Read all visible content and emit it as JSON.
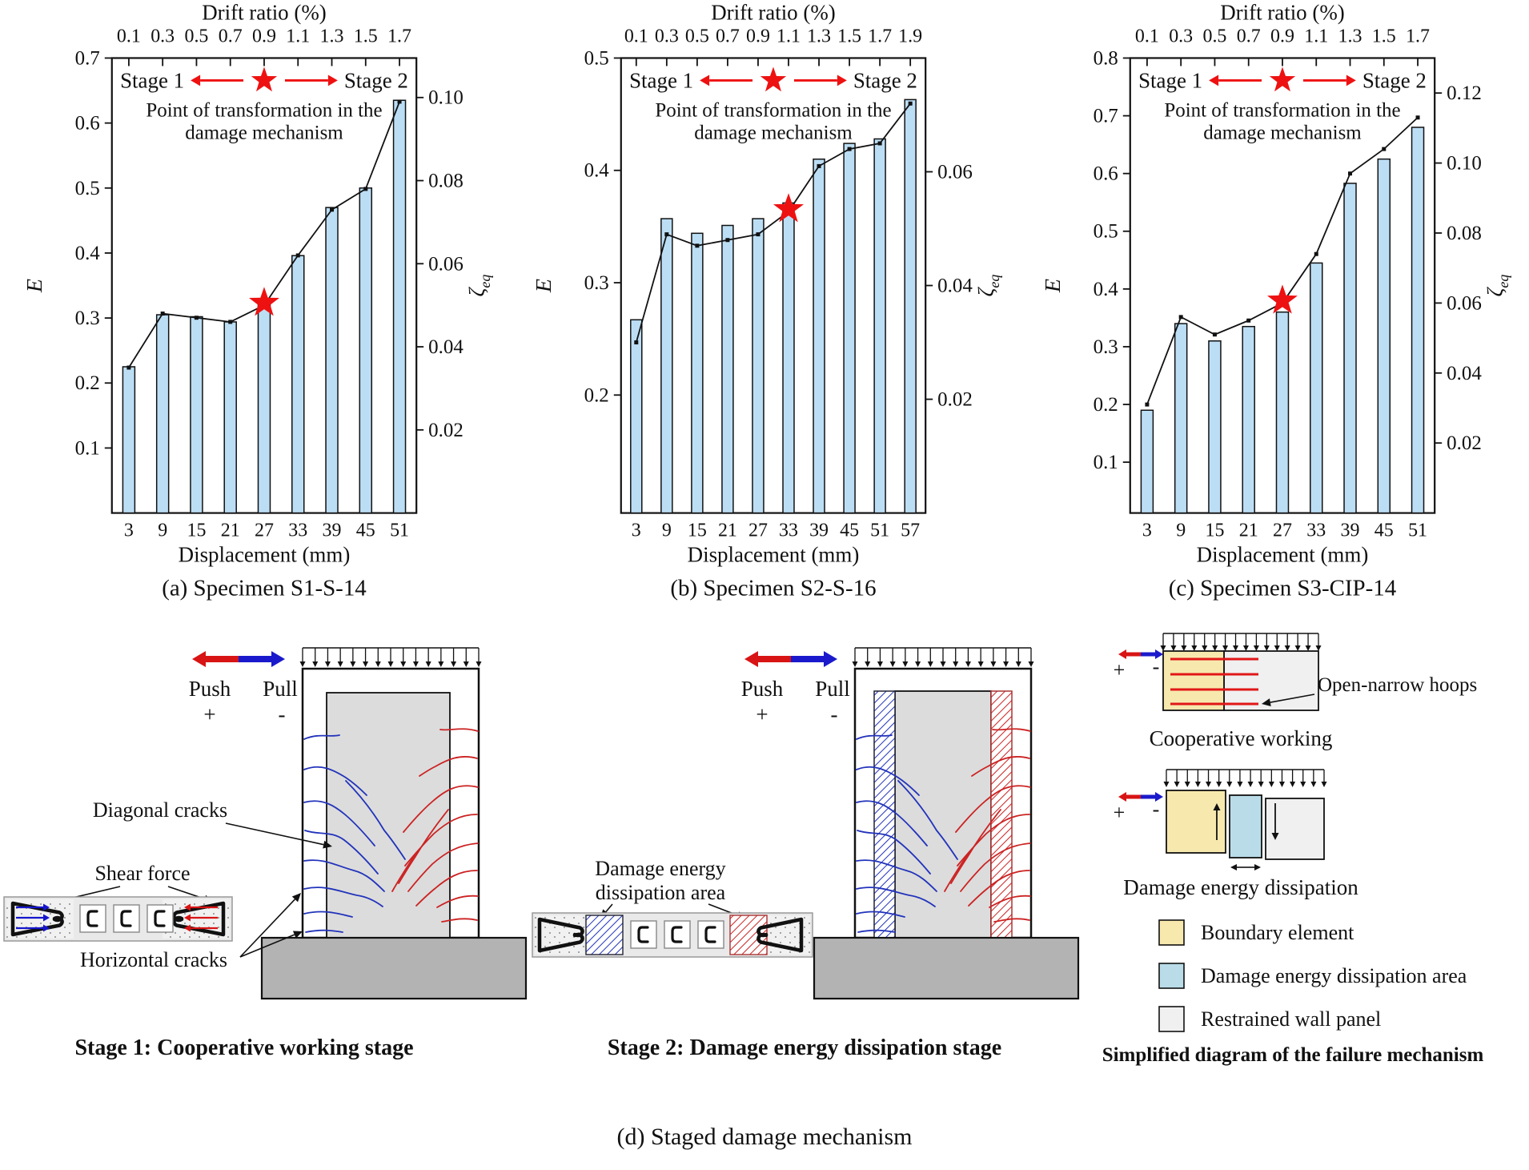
{
  "colors": {
    "bar_fill": "#bcdef5",
    "bar_stroke": "#111111",
    "line": "#111111",
    "star": "#ee1111",
    "push_red": "#d81414",
    "pull_blue": "#1a1acc",
    "crack_blue": "#2233bb",
    "crack_red": "#cc2222",
    "boundary_yellow": "#f7e9ae",
    "dissipation_blue": "#b9dce8",
    "restrained_gray": "#f0f0f0",
    "inner_panel_gray": "#dcdcdc",
    "foundation_gray": "#b3b3b3"
  },
  "chart_data": [
    {
      "id": "a",
      "type": "bar",
      "title_top": "Drift ratio (%)",
      "xlabel": "Displacement (mm)",
      "ylabel_left": "E",
      "ylabel_right": "ζ",
      "ylabel_right_sub": "eq",
      "categories": [
        3,
        9,
        15,
        21,
        27,
        33,
        39,
        45,
        51
      ],
      "drift_ticks": [
        "0.1",
        "0.3",
        "0.5",
        "0.7",
        "0.9",
        "1.1",
        "1.3",
        "1.5",
        "1.7"
      ],
      "series": [
        {
          "name": "E (bars, left axis)",
          "values": [
            0.225,
            0.305,
            0.302,
            0.294,
            0.322,
            0.396,
            0.47,
            0.5,
            0.635
          ]
        },
        {
          "name": "ζeq (line, right axis)",
          "values": [
            0.035,
            0.048,
            0.047,
            0.046,
            0.05,
            0.062,
            0.073,
            0.078,
            0.099
          ]
        }
      ],
      "left_axis": {
        "min": 0,
        "max": 0.7,
        "ticks": [
          0.1,
          0.2,
          0.3,
          0.4,
          0.5,
          0.6,
          0.7
        ]
      },
      "right_axis": {
        "min": 0,
        "max": 0.1095,
        "ticks": [
          0.02,
          0.04,
          0.06,
          0.08,
          0.1
        ],
        "labels": [
          "0.02",
          "0.04",
          "0.06",
          "0.08",
          "0.10"
        ]
      },
      "grid": false,
      "star_index": 4,
      "annotations": {
        "stage1": "Stage 1",
        "stage2": "Stage 2",
        "note1": "Point of transformation in the",
        "note2": "damage mechanism"
      },
      "caption": "(a) Specimen S1-S-14"
    },
    {
      "id": "b",
      "type": "bar",
      "title_top": "Drift ratio (%)",
      "xlabel": "Displacement (mm)",
      "ylabel_left": "E",
      "ylabel_right": "ζ",
      "ylabel_right_sub": "eq",
      "categories": [
        3,
        9,
        15,
        21,
        27,
        33,
        39,
        45,
        51,
        57
      ],
      "drift_ticks": [
        "0.1",
        "0.3",
        "0.5",
        "0.7",
        "0.9",
        "1.1",
        "1.3",
        "1.5",
        "1.7",
        "1.9"
      ],
      "series": [
        {
          "name": "E (bars, left axis)",
          "values": [
            0.267,
            0.357,
            0.344,
            0.351,
            0.357,
            0.371,
            0.41,
            0.424,
            0.428,
            0.463
          ]
        },
        {
          "name": "ζeq (line, right axis)",
          "values": [
            0.03,
            0.049,
            0.047,
            0.048,
            0.049,
            0.053,
            0.061,
            0.064,
            0.065,
            0.072
          ]
        }
      ],
      "left_axis": {
        "min": 0.095,
        "max": 0.5,
        "ticks": [
          0.2,
          0.3,
          0.4,
          0.5
        ]
      },
      "right_axis": {
        "min": 0,
        "max": 0.08,
        "ticks": [
          0.02,
          0.04,
          0.06
        ],
        "labels": [
          "0.02",
          "0.04",
          "0.06"
        ]
      },
      "grid": false,
      "star_index": 5,
      "annotations": {
        "stage1": "Stage 1",
        "stage2": "Stage 2",
        "note1": "Point of transformation in the",
        "note2": "damage mechanism"
      },
      "caption": "(b) Specimen S2-S-16"
    },
    {
      "id": "c",
      "type": "bar",
      "title_top": "Drift ratio (%)",
      "xlabel": "Displacement (mm)",
      "ylabel_left": "E",
      "ylabel_right": "ζ",
      "ylabel_right_sub": "eq",
      "categories": [
        3,
        9,
        15,
        21,
        27,
        33,
        39,
        45,
        51
      ],
      "drift_ticks": [
        "0.1",
        "0.3",
        "0.5",
        "0.7",
        "0.9",
        "1.1",
        "1.3",
        "1.5",
        "1.7"
      ],
      "series": [
        {
          "name": "E (bars, left axis)",
          "values": [
            0.19,
            0.34,
            0.31,
            0.335,
            0.36,
            0.445,
            0.583,
            0.625,
            0.68
          ]
        },
        {
          "name": "ζeq (line, right axis)",
          "values": [
            0.031,
            0.056,
            0.051,
            0.055,
            0.06,
            0.074,
            0.097,
            0.104,
            0.113
          ]
        }
      ],
      "left_axis": {
        "min": 0.012,
        "max": 0.8,
        "ticks": [
          0.1,
          0.2,
          0.3,
          0.4,
          0.5,
          0.6,
          0.7,
          0.8
        ]
      },
      "right_axis": {
        "min": 0,
        "max": 0.13,
        "ticks": [
          0.02,
          0.04,
          0.06,
          0.08,
          0.1,
          0.12
        ],
        "labels": [
          "0.02",
          "0.04",
          "0.06",
          "0.08",
          "0.10",
          "0.12"
        ]
      },
      "grid": false,
      "star_index": 4,
      "annotations": {
        "stage1": "Stage 1",
        "stage2": "Stage 2",
        "note1": "Point of transformation in the",
        "note2": "damage mechanism"
      },
      "caption": "(c) Specimen S3-CIP-14"
    }
  ],
  "diagram": {
    "push_label": "Push",
    "push_sign": "+",
    "pull_label": "Pull",
    "pull_sign": "-",
    "diagonal_cracks": "Diagonal cracks",
    "shear_force": "Shear force",
    "horizontal_cracks": "Horizontal cracks",
    "stage1_caption": "Stage 1: Cooperative working stage",
    "damage_area_line1": "Damage energy",
    "damage_area_line2": "dissipation area",
    "stage2_caption": "Stage 2: Damage energy dissipation stage",
    "open_narrow_hoops": "Open-narrow hoops",
    "coop_caption": "Cooperative working",
    "ded_caption": "Damage energy dissipation",
    "legend": [
      {
        "label": "Boundary element",
        "color": "#f7e9ae"
      },
      {
        "label": "Damage energy dissipation area",
        "color": "#b9dce8"
      },
      {
        "label": "Restrained wall panel",
        "color": "#f0f0f0"
      }
    ],
    "simplified_caption": "Simplified diagram of the failure mechanism",
    "d_caption": "(d) Staged damage mechanism"
  }
}
